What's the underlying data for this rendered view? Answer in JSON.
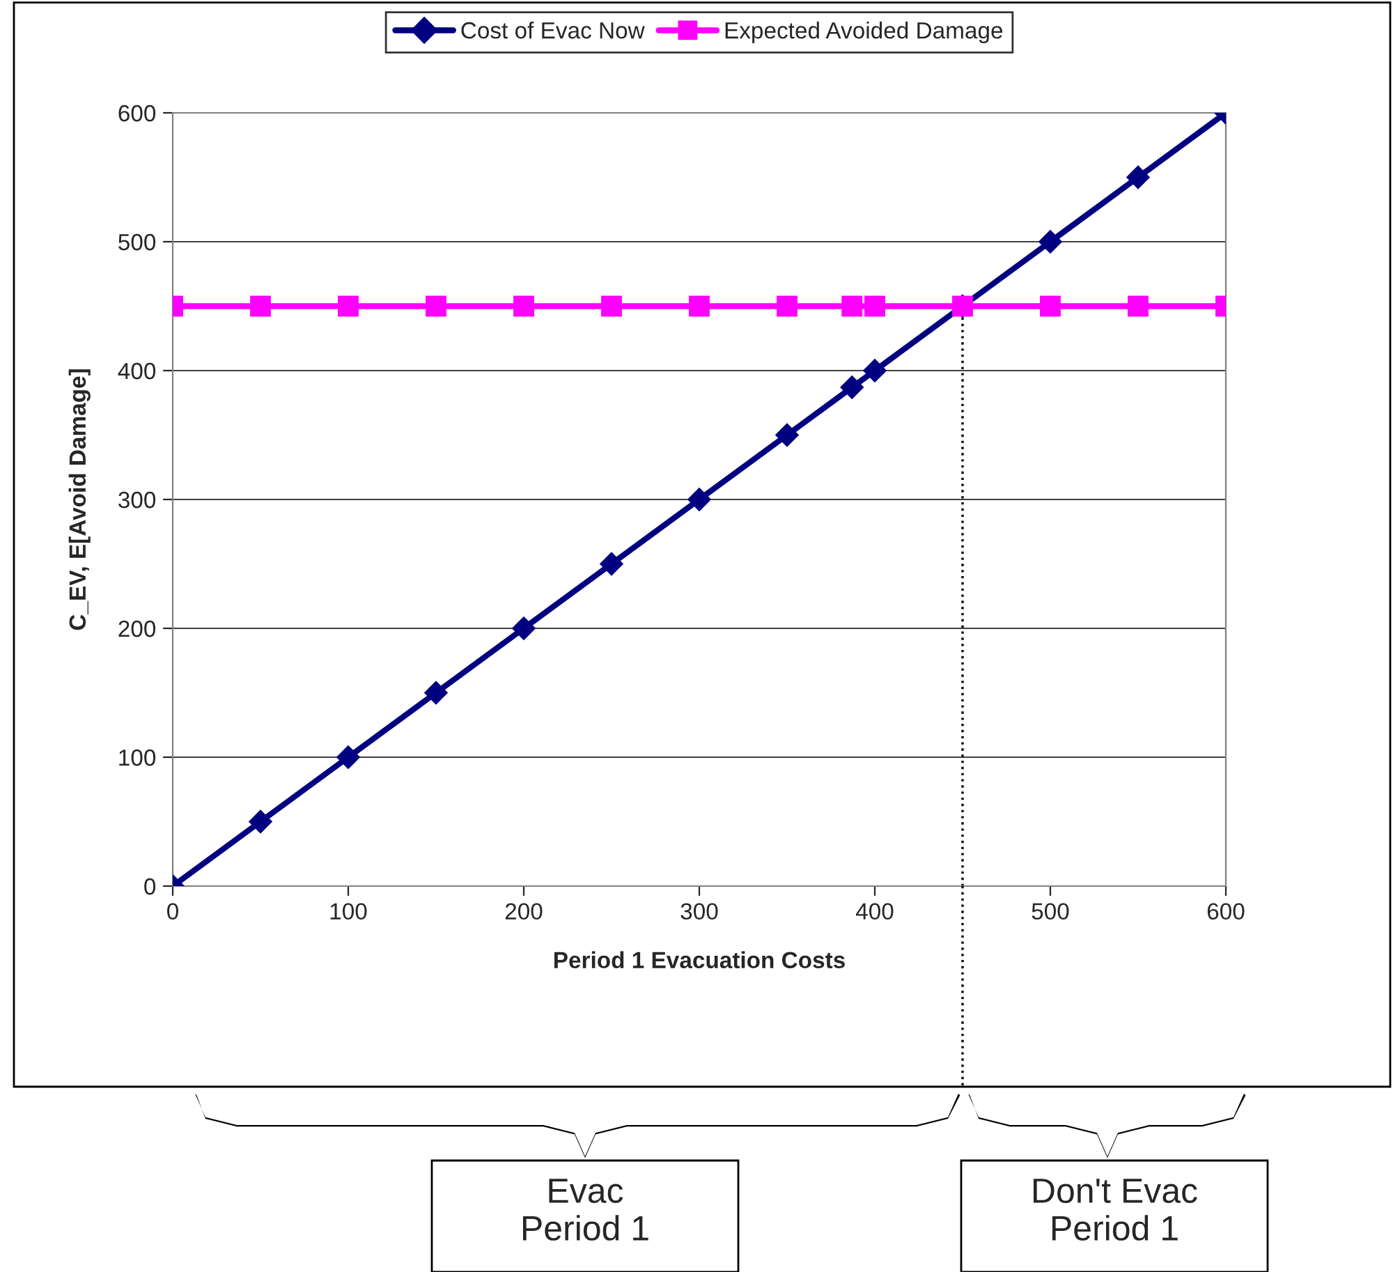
{
  "chart_data": {
    "type": "line",
    "xlabel": "Period 1 Evacuation Costs",
    "ylabel": "C_EV, E[Avoid Damage]",
    "xlim": [
      0,
      600
    ],
    "xticks": [
      0,
      100,
      200,
      300,
      400,
      500,
      600
    ],
    "ylim": [
      0,
      600
    ],
    "yticks": [
      0,
      100,
      200,
      300,
      400,
      500,
      600
    ],
    "grid": "y",
    "legend": "top",
    "line_style": "solid",
    "series": [
      {
        "name": "Cost of Evac Now",
        "color": "#000080",
        "marker": "diamond",
        "x": [
          0,
          50,
          100,
          150,
          200,
          250,
          300,
          350,
          387,
          400,
          450,
          500,
          550,
          600
        ],
        "values": [
          0,
          50,
          100,
          150,
          200,
          250,
          300,
          350,
          387,
          400,
          450,
          500,
          550,
          600
        ]
      },
      {
        "name": "Expected Avoided Damage",
        "color": "#ff00ff",
        "marker": "square",
        "x": [
          0,
          50,
          100,
          150,
          200,
          250,
          300,
          350,
          387,
          400,
          450,
          500,
          550,
          600
        ],
        "values": [
          450,
          450,
          450,
          450,
          450,
          450,
          450,
          450,
          450,
          450,
          450,
          450,
          450,
          450
        ]
      }
    ],
    "ref_lines": [
      {
        "axis": "x",
        "value": 450,
        "color": "#000000",
        "line_style": "dotted"
      }
    ],
    "annotations": [
      "Evac\nPeriod 1",
      "Don't Evac\nPeriod 1"
    ]
  }
}
